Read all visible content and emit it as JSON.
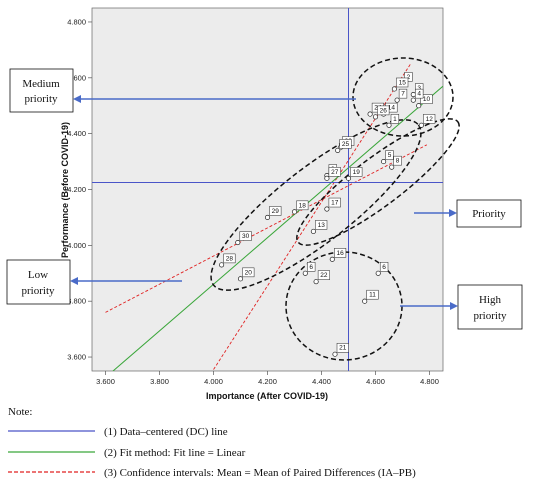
{
  "chart_data": {
    "type": "scatter",
    "xlabel": "Importance (After COVID-19)",
    "ylabel": "Performance (Before COVID-19)",
    "xlim": [
      3.55,
      4.85
    ],
    "ylim": [
      3.55,
      4.85
    ],
    "x_ticks": [
      "3.600",
      "3.800",
      "4.000",
      "4.200",
      "4.400",
      "4.600",
      "4.800"
    ],
    "y_ticks": [
      "3.600",
      "3.800",
      "4.000",
      "4.200",
      "4.400",
      "4.600",
      "4.800"
    ],
    "dc_line": {
      "x": 4.5,
      "y": 4.225
    },
    "points": [
      {
        "label": "2",
        "x": 4.7,
        "y": 4.58
      },
      {
        "label": "3",
        "x": 4.74,
        "y": 4.54
      },
      {
        "label": "15",
        "x": 4.67,
        "y": 4.56
      },
      {
        "label": "7",
        "x": 4.68,
        "y": 4.52
      },
      {
        "label": "10",
        "x": 4.76,
        "y": 4.5
      },
      {
        "label": "4",
        "x": 4.74,
        "y": 4.52
      },
      {
        "label": "24",
        "x": 4.58,
        "y": 4.47
      },
      {
        "label": "14",
        "x": 4.63,
        "y": 4.47
      },
      {
        "label": "26",
        "x": 4.6,
        "y": 4.46
      },
      {
        "label": "12",
        "x": 4.77,
        "y": 4.43
      },
      {
        "label": "1",
        "x": 4.65,
        "y": 4.43
      },
      {
        "label": "23",
        "x": 4.47,
        "y": 4.35
      },
      {
        "label": "25",
        "x": 4.46,
        "y": 4.34
      },
      {
        "label": "5",
        "x": 4.63,
        "y": 4.3
      },
      {
        "label": "8",
        "x": 4.66,
        "y": 4.28
      },
      {
        "label": "9",
        "x": 4.42,
        "y": 4.25
      },
      {
        "label": "19",
        "x": 4.5,
        "y": 4.24
      },
      {
        "label": "27",
        "x": 4.42,
        "y": 4.24
      },
      {
        "label": "18",
        "x": 4.3,
        "y": 4.12
      },
      {
        "label": "29",
        "x": 4.2,
        "y": 4.1
      },
      {
        "label": "17",
        "x": 4.42,
        "y": 4.13
      },
      {
        "label": "13",
        "x": 4.37,
        "y": 4.05
      },
      {
        "label": "30",
        "x": 4.09,
        "y": 4.01
      },
      {
        "label": "28",
        "x": 4.03,
        "y": 3.93
      },
      {
        "label": "20",
        "x": 4.1,
        "y": 3.88
      },
      {
        "label": "16",
        "x": 4.44,
        "y": 3.95
      },
      {
        "label": "6",
        "x": 4.34,
        "y": 3.9
      },
      {
        "label": "22",
        "x": 4.38,
        "y": 3.87
      },
      {
        "label": "6",
        "x": 4.61,
        "y": 3.9
      },
      {
        "label": "11",
        "x": 4.56,
        "y": 3.8
      },
      {
        "label": "21",
        "x": 4.45,
        "y": 3.61
      }
    ],
    "fit_line": {
      "x": [
        3.52,
        4.85
      ],
      "y": [
        3.46,
        4.57
      ]
    },
    "ci_upper": {
      "x": [
        3.95,
        4.73
      ],
      "y": [
        3.48,
        4.65
      ]
    },
    "ci_lower": {
      "x": [
        3.6,
        4.79
      ],
      "y": [
        3.76,
        4.36
      ]
    }
  },
  "callouts": {
    "medium": [
      "Medium",
      "priority"
    ],
    "priority": [
      "Priority"
    ],
    "low": [
      "Low",
      "priority"
    ],
    "high": [
      "High",
      "priority"
    ]
  },
  "note": {
    "title": "Note:",
    "items": [
      {
        "text": "(1)   Data–centered (DC) line",
        "color": "#4a55c8",
        "dash": "solid"
      },
      {
        "text": "(2)   Fit method: Fit line = Linear",
        "color": "#3aa63a",
        "dash": "solid"
      },
      {
        "text": "(3)   Confidence intervals: Mean = Mean of Paired Differences (IA–PB)",
        "color": "#e02020",
        "dash": "dashed"
      }
    ]
  }
}
